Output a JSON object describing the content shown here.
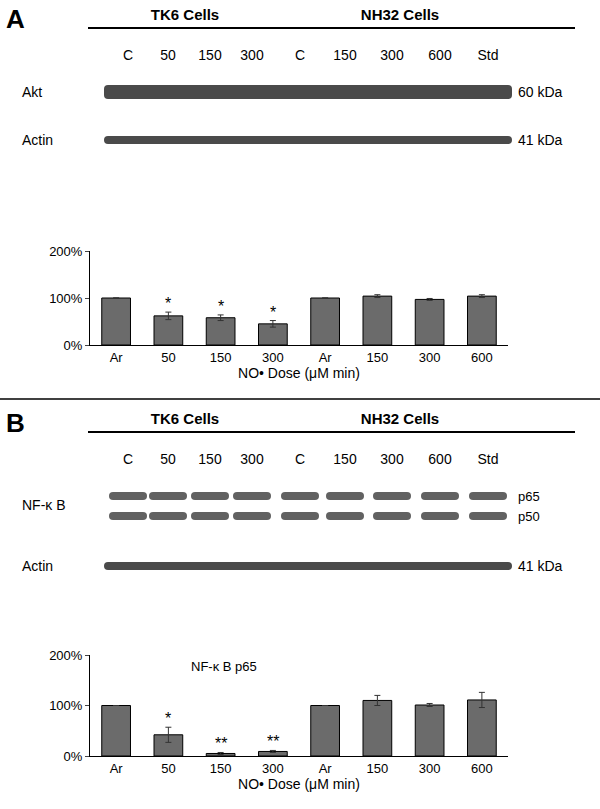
{
  "blots": [
    {
      "panel": "A",
      "groups": [
        "TK6 Cells",
        "NH32 Cells"
      ],
      "lanes": [
        "C",
        "50",
        "150",
        "300",
        "C",
        "150",
        "300",
        "600",
        "Std"
      ],
      "rows": [
        {
          "label": "Akt",
          "kda": "60 kDa"
        },
        {
          "label": "Actin",
          "kda": "41 kDa"
        }
      ]
    },
    {
      "panel": "B",
      "groups": [
        "TK6 Cells",
        "NH32 Cells"
      ],
      "lanes": [
        "C",
        "50",
        "150",
        "300",
        "C",
        "150",
        "300",
        "600",
        "Std"
      ],
      "rows": [
        {
          "label": "NF-κ B",
          "bands": [
            "p65",
            "p50"
          ]
        },
        {
          "label": "Actin",
          "kda": "41 kDa"
        }
      ]
    }
  ],
  "chart_data": [
    {
      "type": "bar",
      "x_label": "NO• Dose (μM min)",
      "categories": [
        "Ar",
        "50",
        "150",
        "300",
        "Ar",
        "150",
        "300",
        "600"
      ],
      "values": [
        100,
        62,
        58,
        45,
        100,
        104,
        97,
        104
      ],
      "errors": [
        0,
        8,
        6,
        7,
        0,
        3,
        2,
        3
      ],
      "significance": [
        null,
        "*",
        "*",
        "*",
        null,
        null,
        null,
        null
      ],
      "color": "#6b6b6b",
      "ylim": [
        0,
        200
      ],
      "yticks": [
        {
          "value": 0,
          "label": "0%"
        },
        {
          "value": 100,
          "label": "100%"
        },
        {
          "value": 200,
          "label": "200%"
        }
      ],
      "grid": false
    },
    {
      "type": "bar",
      "title": "NF-κ B p65",
      "x_label": "NO• Dose (μM min)",
      "categories": [
        "Ar",
        "50",
        "150",
        "300",
        "Ar",
        "150",
        "300",
        "600"
      ],
      "values": [
        100,
        42,
        5,
        9,
        100,
        110,
        101,
        111
      ],
      "errors": [
        0,
        15,
        2,
        2,
        0,
        10,
        3,
        15
      ],
      "significance": [
        null,
        "*",
        "**",
        "**",
        null,
        null,
        null,
        null
      ],
      "color": "#6b6b6b",
      "ylim": [
        0,
        200
      ],
      "yticks": [
        {
          "value": 0,
          "label": "0%"
        },
        {
          "value": 100,
          "label": "100%"
        },
        {
          "value": 200,
          "label": "200%"
        }
      ],
      "grid": false
    }
  ]
}
